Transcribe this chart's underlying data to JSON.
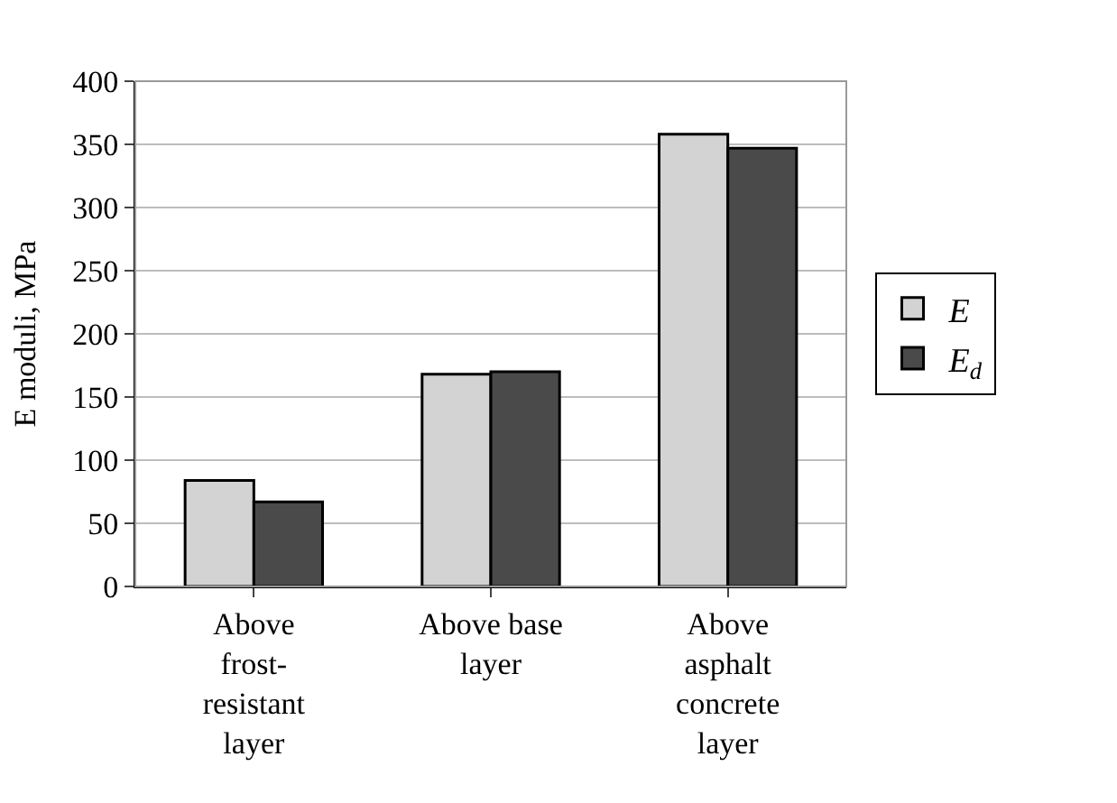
{
  "chart_data": {
    "type": "bar",
    "ylabel": "E moduli, MPa",
    "categories": [
      "Above\nfrost-\nresistant\nlayer",
      "Above base\nlayer",
      "Above\nasphalt\nconcrete\nlayer"
    ],
    "series": [
      {
        "name": "E",
        "color": "#d3d3d3",
        "values": [
          84,
          168,
          358
        ]
      },
      {
        "name": "E$_{d}$",
        "color": "#4a4a4a",
        "values": [
          67,
          170,
          347
        ]
      }
    ],
    "ylim": [
      0,
      400
    ],
    "yticks": [
      0,
      50,
      100,
      150,
      200,
      250,
      300,
      350,
      400
    ],
    "grid": "y",
    "legend": "right"
  }
}
